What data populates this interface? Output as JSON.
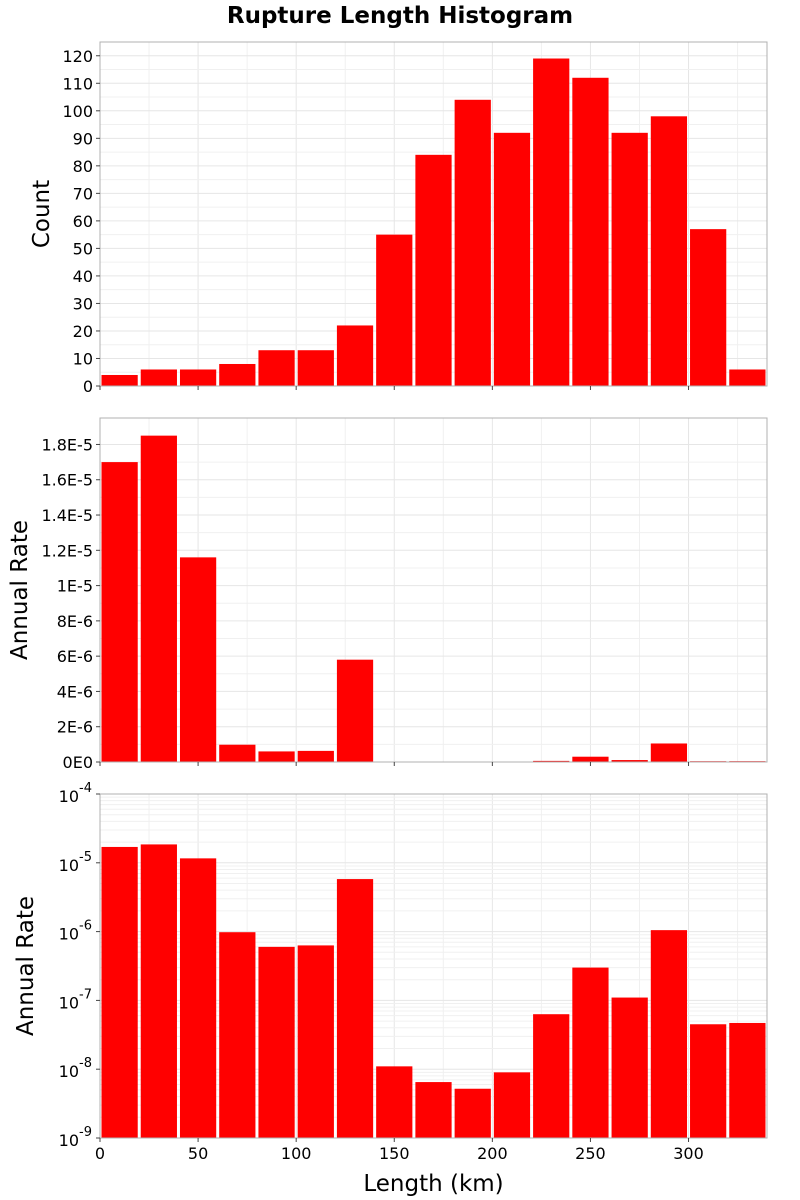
{
  "chart_data": [
    {
      "type": "bar",
      "title": "Rupture Length Histogram",
      "ylabel": "Count",
      "xlabel": "",
      "bin_centers": [
        10,
        30,
        50,
        70,
        90,
        110,
        130,
        150,
        170,
        190,
        210,
        230,
        250,
        270,
        290,
        310,
        330
      ],
      "values": [
        4,
        6,
        6,
        8,
        13,
        13,
        22,
        55,
        84,
        104,
        92,
        119,
        112,
        92,
        98,
        57,
        6
      ],
      "xlim": [
        0,
        340
      ],
      "ylim": [
        0,
        125
      ],
      "yticks": [
        0,
        10,
        20,
        30,
        40,
        50,
        60,
        70,
        80,
        90,
        100,
        110,
        120
      ],
      "ytick_labels": [
        "0",
        "10",
        "20",
        "30",
        "40",
        "50",
        "60",
        "70",
        "80",
        "90",
        "100",
        "110",
        "120"
      ],
      "color": "#ff0000",
      "grid": true
    },
    {
      "type": "bar",
      "ylabel": "Annual Rate",
      "xlabel": "",
      "bin_centers": [
        10,
        30,
        50,
        70,
        90,
        110,
        130,
        150,
        170,
        190,
        210,
        230,
        250,
        270,
        290,
        310,
        330
      ],
      "values": [
        1.7e-05,
        1.85e-05,
        1.16e-05,
        9.8e-07,
        6e-07,
        6.3e-07,
        5.8e-06,
        1.1e-08,
        6.5e-09,
        5.2e-09,
        9e-09,
        6.3e-08,
        3e-07,
        1.1e-07,
        1.05e-06,
        4.5e-08,
        4.7e-08
      ],
      "xlim": [
        0,
        340
      ],
      "ylim": [
        0,
        1.95e-05
      ],
      "yticks": [
        0,
        2e-06,
        4e-06,
        6e-06,
        8e-06,
        1e-05,
        1.2e-05,
        1.4e-05,
        1.6e-05,
        1.8e-05
      ],
      "ytick_labels": [
        "0E0",
        "2E-6",
        "4E-6",
        "6E-6",
        "8E-6",
        "1E-5",
        "1.2E-5",
        "1.4E-5",
        "1.6E-5",
        "1.8E-5"
      ],
      "color": "#ff0000",
      "grid": true
    },
    {
      "type": "bar",
      "ylabel": "Annual Rate",
      "xlabel": "Length (km)",
      "yscale": "log",
      "bin_centers": [
        10,
        30,
        50,
        70,
        90,
        110,
        130,
        150,
        170,
        190,
        210,
        230,
        250,
        270,
        290,
        310,
        330
      ],
      "values": [
        1.7e-05,
        1.85e-05,
        1.16e-05,
        9.8e-07,
        6e-07,
        6.3e-07,
        5.8e-06,
        1.1e-08,
        6.5e-09,
        5.2e-09,
        9e-09,
        6.3e-08,
        3e-07,
        1.1e-07,
        1.05e-06,
        4.5e-08,
        4.7e-08
      ],
      "xlim": [
        0,
        340
      ],
      "ylim": [
        1e-09,
        0.0001
      ],
      "ytick_exponents": [
        "-9",
        "-8",
        "-7",
        "-6",
        "-5",
        "-4"
      ],
      "ytick_base": "10",
      "xticks": [
        0,
        50,
        100,
        150,
        200,
        250,
        300
      ],
      "xtick_labels": [
        "0",
        "50",
        "100",
        "150",
        "200",
        "250",
        "300"
      ],
      "color": "#ff0000",
      "grid": true
    }
  ]
}
